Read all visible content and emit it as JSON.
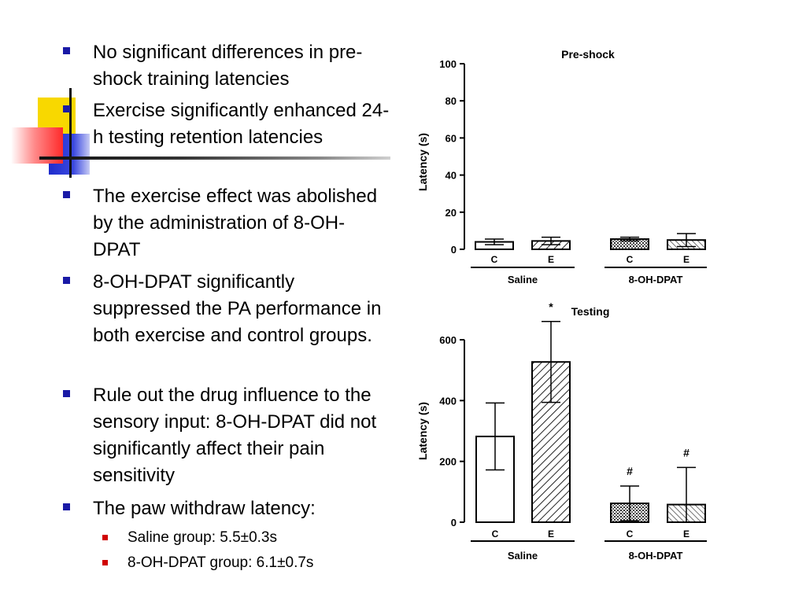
{
  "bullets": [
    {
      "text": "No significant differences in pre-shock training latencies"
    },
    {
      "text": "Exercise significantly enhanced 24-h testing retention latencies"
    },
    {
      "text": "The exercise effect was abolished by the administration of 8-OH-DPAT"
    },
    {
      "text": "8-OH-DPAT significantly suppressed the PA performance in both exercise and control groups."
    },
    {
      "text": "Rule out the drug influence to the sensory input: 8-OH-DPAT did not significantly affect their pain sensitivity"
    },
    {
      "text": "The paw withdraw latency:"
    }
  ],
  "sub_bullets": [
    {
      "text": "Saline group: 5.5±0.3s"
    },
    {
      "text": "8-OH-DPAT group: 6.1±0.7s"
    }
  ],
  "colors": {
    "bullet_square": "#1a1aa6",
    "sub_bullet_square": "#d00000",
    "deco_yellow": "#f8d800",
    "deco_blue": "#1e2ccc",
    "deco_red": "#ff2a2a"
  },
  "chart_data": [
    {
      "type": "bar",
      "title": "Pre-shock",
      "ylabel": "Latency (s)",
      "xlabel": "",
      "ylim": [
        0,
        100
      ],
      "yticks": [
        0,
        20,
        40,
        60,
        80,
        100
      ],
      "categories": [
        "C",
        "E",
        "C",
        "E"
      ],
      "groups": [
        {
          "name": "Saline",
          "categories": [
            "C",
            "E"
          ]
        },
        {
          "name": "8-OH-DPAT",
          "categories": [
            "C",
            "E"
          ]
        }
      ],
      "values": [
        4,
        4.5,
        5.5,
        5
      ],
      "errors": [
        1.5,
        2,
        1,
        3.5
      ],
      "patterns": [
        "open",
        "hatched",
        "dotted",
        "striped"
      ],
      "annotations": [
        "",
        "",
        "",
        ""
      ],
      "grid": false
    },
    {
      "type": "bar",
      "title": "Testing",
      "ylabel": "Latency (s)",
      "xlabel": "",
      "ylim": [
        0,
        600
      ],
      "yticks": [
        0,
        200,
        400,
        600
      ],
      "categories": [
        "C",
        "E",
        "C",
        "E"
      ],
      "groups": [
        {
          "name": "Saline",
          "categories": [
            "C",
            "E"
          ]
        },
        {
          "name": "8-OH-DPAT",
          "categories": [
            "C",
            "E"
          ]
        }
      ],
      "values": [
        282,
        527,
        62,
        58
      ],
      "errors": [
        110,
        133,
        57,
        122
      ],
      "patterns": [
        "open",
        "hatched",
        "dotted",
        "striped"
      ],
      "annotations": [
        "",
        "*",
        "#",
        "#"
      ],
      "grid": false
    }
  ]
}
